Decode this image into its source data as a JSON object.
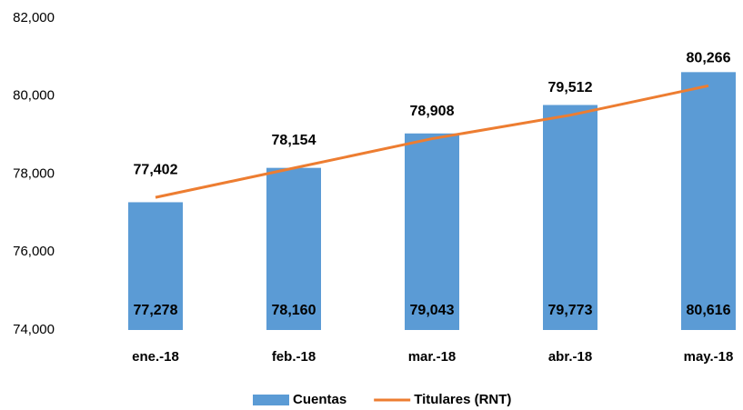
{
  "chart_data": {
    "type": "bar",
    "categories": [
      "ene.-18",
      "feb.-18",
      "mar.-18",
      "abr.-18",
      "may.-18"
    ],
    "series": [
      {
        "name": "Cuentas",
        "type": "bar",
        "color": "#5b9bd5",
        "values": [
          77278,
          78160,
          79043,
          79773,
          80616
        ],
        "value_labels": [
          "77,278",
          "78,160",
          "79,043",
          "79,773",
          "80,616"
        ]
      },
      {
        "name": "Titulares (RNT)",
        "type": "line",
        "color": "#ed7d31",
        "values": [
          77402,
          78154,
          78908,
          79512,
          80266
        ],
        "value_labels": [
          "77,402",
          "78,154",
          "78,908",
          "79,512",
          "80,266"
        ]
      }
    ],
    "ylim": [
      74000,
      82000
    ],
    "yticks": [
      {
        "value": 74000,
        "label": "74,000"
      },
      {
        "value": 76000,
        "label": "76,000"
      },
      {
        "value": 78000,
        "label": "78,000"
      },
      {
        "value": 80000,
        "label": "80,000"
      },
      {
        "value": 82000,
        "label": "82,000"
      }
    ],
    "grid": false,
    "legend": "bottom"
  }
}
